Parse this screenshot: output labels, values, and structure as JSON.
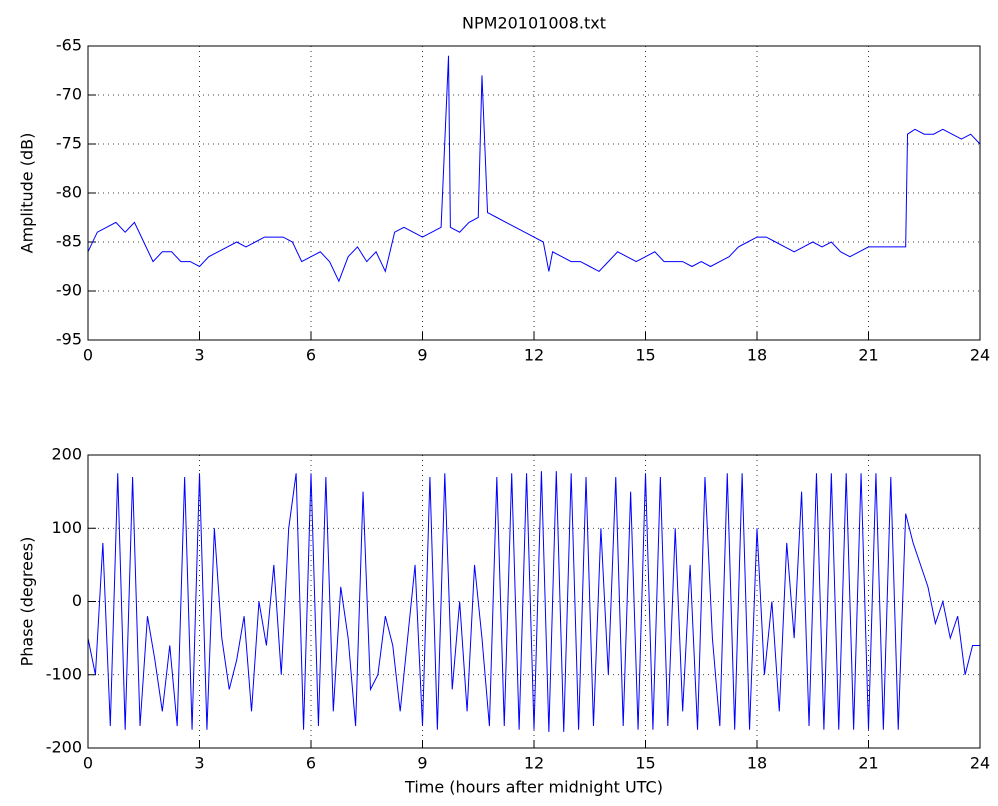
{
  "chart_data": [
    {
      "type": "line",
      "title": "NPM20101008.txt",
      "y_label": "Amplitude (dB)",
      "grid": true,
      "xlim": [
        0,
        24
      ],
      "xticks": [
        0,
        3,
        6,
        9,
        12,
        15,
        18,
        21,
        24
      ],
      "ylim": [
        -95,
        -65
      ],
      "yticks": [
        -95,
        -90,
        -85,
        -80,
        -75,
        -70,
        -65
      ],
      "x": [
        0,
        0.25,
        0.5,
        0.75,
        1.0,
        1.25,
        1.5,
        1.75,
        2.0,
        2.25,
        2.5,
        2.75,
        3.0,
        3.25,
        3.5,
        3.75,
        4.0,
        4.25,
        4.5,
        4.75,
        5.0,
        5.25,
        5.5,
        5.75,
        6.0,
        6.25,
        6.5,
        6.75,
        7.0,
        7.25,
        7.5,
        7.75,
        8.0,
        8.25,
        8.5,
        8.75,
        9.0,
        9.25,
        9.5,
        9.7,
        9.75,
        10.0,
        10.25,
        10.5,
        10.6,
        10.75,
        11.0,
        11.25,
        11.5,
        11.75,
        12.0,
        12.25,
        12.4,
        12.5,
        12.75,
        13.0,
        13.25,
        13.5,
        13.75,
        14.0,
        14.25,
        14.5,
        14.75,
        15.0,
        15.25,
        15.5,
        15.75,
        16.0,
        16.25,
        16.5,
        16.75,
        17.0,
        17.25,
        17.5,
        17.75,
        18.0,
        18.25,
        18.5,
        18.75,
        19.0,
        19.25,
        19.5,
        19.75,
        20.0,
        20.25,
        20.5,
        20.75,
        21.0,
        21.25,
        21.5,
        21.75,
        22.0,
        22.05,
        22.25,
        22.5,
        22.75,
        23.0,
        23.25,
        23.5,
        23.75,
        24.0
      ],
      "series": [
        {
          "color": "#0000ff",
          "values": [
            -86,
            -84,
            -83.5,
            -83,
            -84,
            -83,
            -85,
            -87,
            -86,
            -86,
            -87,
            -87,
            -87.5,
            -86.5,
            -86,
            -85.5,
            -85,
            -85.5,
            -85,
            -84.5,
            -84.5,
            -84.5,
            -85,
            -87,
            -86.5,
            -86,
            -87,
            -89,
            -86.5,
            -85.5,
            -87,
            -86,
            -88,
            -84,
            -83.5,
            -84,
            -84.5,
            -84,
            -83.5,
            -66,
            -83.5,
            -84,
            -83,
            -82.5,
            -68,
            -82,
            -82.5,
            -83,
            -83.5,
            -84,
            -84.5,
            -85,
            -88,
            -86,
            -86.5,
            -87,
            -87,
            -87.5,
            -88,
            -87,
            -86,
            -86.5,
            -87,
            -86.5,
            -86,
            -87,
            -87,
            -87,
            -87.5,
            -87,
            -87.5,
            -87,
            -86.5,
            -85.5,
            -85,
            -84.5,
            -84.5,
            -85,
            -85.5,
            -86,
            -85.5,
            -85,
            -85.5,
            -85,
            -86,
            -86.5,
            -86,
            -85.5,
            -85.5,
            -85.5,
            -85.5,
            -85.5,
            -74,
            -73.5,
            -74,
            -74,
            -73.5,
            -74,
            -74.5,
            -74,
            -75
          ]
        }
      ]
    },
    {
      "type": "line",
      "x_label": "Time (hours after midnight UTC)",
      "y_label": "Phase (degrees)",
      "grid": true,
      "xlim": [
        0,
        24
      ],
      "xticks": [
        0,
        3,
        6,
        9,
        12,
        15,
        18,
        21,
        24
      ],
      "ylim": [
        -200,
        200
      ],
      "yticks": [
        -200,
        -100,
        0,
        100,
        200
      ],
      "x": [
        0,
        0.2,
        0.4,
        0.6,
        0.8,
        1.0,
        1.2,
        1.4,
        1.6,
        1.8,
        2.0,
        2.2,
        2.4,
        2.6,
        2.8,
        3.0,
        3.2,
        3.4,
        3.6,
        3.8,
        4.0,
        4.2,
        4.4,
        4.6,
        4.8,
        5.0,
        5.2,
        5.4,
        5.6,
        5.8,
        6.0,
        6.2,
        6.4,
        6.6,
        6.8,
        7.0,
        7.2,
        7.4,
        7.6,
        7.8,
        8.0,
        8.2,
        8.4,
        8.6,
        8.8,
        9.0,
        9.2,
        9.4,
        9.6,
        9.8,
        10.0,
        10.2,
        10.4,
        10.6,
        10.8,
        11.0,
        11.2,
        11.4,
        11.6,
        11.8,
        12.0,
        12.2,
        12.4,
        12.6,
        12.8,
        13.0,
        13.2,
        13.4,
        13.6,
        13.8,
        14.0,
        14.2,
        14.4,
        14.6,
        14.8,
        15.0,
        15.2,
        15.4,
        15.6,
        15.8,
        16.0,
        16.2,
        16.4,
        16.6,
        16.8,
        17.0,
        17.2,
        17.4,
        17.6,
        17.8,
        18.0,
        18.2,
        18.4,
        18.6,
        18.8,
        19.0,
        19.2,
        19.4,
        19.6,
        19.8,
        20.0,
        20.2,
        20.4,
        20.6,
        20.8,
        21.0,
        21.2,
        21.4,
        21.6,
        21.8,
        22.0,
        22.2,
        22.4,
        22.6,
        22.8,
        23.0,
        23.2,
        23.4,
        23.6,
        23.8,
        24.0
      ],
      "series": [
        {
          "color": "#0000ff",
          "values": [
            -50,
            -100,
            80,
            -170,
            175,
            -175,
            170,
            -170,
            -20,
            -80,
            -150,
            -60,
            -170,
            170,
            -175,
            175,
            -175,
            100,
            -50,
            -120,
            -80,
            -20,
            -150,
            0,
            -60,
            50,
            -100,
            100,
            175,
            -175,
            175,
            -170,
            170,
            -150,
            20,
            -50,
            -170,
            150,
            -120,
            -100,
            -20,
            -60,
            -150,
            -50,
            50,
            -170,
            170,
            -175,
            175,
            -120,
            0,
            -150,
            50,
            -50,
            -170,
            170,
            -170,
            175,
            -175,
            175,
            -175,
            178,
            -178,
            178,
            -178,
            175,
            -175,
            170,
            -170,
            100,
            -100,
            170,
            -170,
            150,
            -175,
            175,
            -175,
            170,
            -170,
            100,
            -150,
            50,
            -175,
            170,
            -50,
            -170,
            175,
            -175,
            175,
            -175,
            100,
            -100,
            0,
            -150,
            80,
            -50,
            150,
            -170,
            175,
            -175,
            175,
            -175,
            175,
            -175,
            175,
            -175,
            175,
            -175,
            170,
            -175,
            120,
            80,
            50,
            20,
            -30,
            0,
            -50,
            -20,
            -100,
            -60,
            -60
          ]
        }
      ]
    }
  ]
}
